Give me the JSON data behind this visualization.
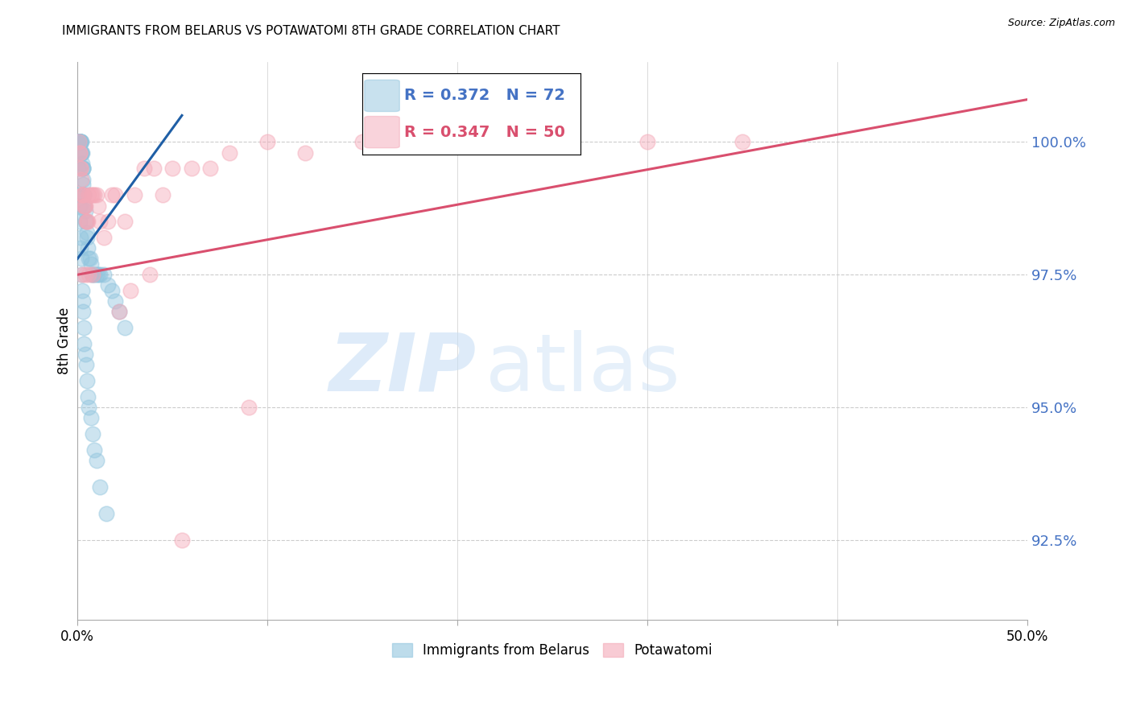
{
  "title": "IMMIGRANTS FROM BELARUS VS POTAWATOMI 8TH GRADE CORRELATION CHART",
  "source": "Source: ZipAtlas.com",
  "ylabel": "8th Grade",
  "legend_label_blue": "Immigrants from Belarus",
  "legend_label_pink": "Potawatomi",
  "legend_blue_text": "R = 0.372   N = 72",
  "legend_pink_text": "R = 0.347   N = 50",
  "blue_color": "#92c5de",
  "pink_color": "#f4a9b8",
  "blue_face": "#92c5de",
  "pink_face": "#f4a9b8",
  "trend_blue": "#1f5fa6",
  "trend_pink": "#d94f6e",
  "yaxis_color": "#4472c4",
  "xlim": [
    0.0,
    50.0
  ],
  "ylim": [
    91.0,
    101.5
  ],
  "yticks": [
    92.5,
    95.0,
    97.5,
    100.0
  ],
  "blue_scatter_x": [
    0.05,
    0.08,
    0.08,
    0.1,
    0.1,
    0.12,
    0.12,
    0.15,
    0.15,
    0.15,
    0.18,
    0.18,
    0.2,
    0.2,
    0.22,
    0.22,
    0.25,
    0.25,
    0.28,
    0.28,
    0.3,
    0.3,
    0.3,
    0.32,
    0.35,
    0.35,
    0.38,
    0.4,
    0.42,
    0.45,
    0.48,
    0.5,
    0.55,
    0.6,
    0.65,
    0.7,
    0.75,
    0.8,
    0.9,
    1.0,
    1.1,
    1.2,
    1.4,
    1.6,
    1.8,
    2.0,
    2.2,
    2.5,
    0.05,
    0.08,
    0.1,
    0.12,
    0.15,
    0.18,
    0.2,
    0.22,
    0.25,
    0.28,
    0.3,
    0.32,
    0.35,
    0.4,
    0.45,
    0.5,
    0.55,
    0.6,
    0.7,
    0.8,
    0.9,
    1.0,
    1.2,
    1.5
  ],
  "blue_scatter_y": [
    100.0,
    100.0,
    100.0,
    100.0,
    100.0,
    100.0,
    100.0,
    100.0,
    100.0,
    100.0,
    100.0,
    100.0,
    100.0,
    99.8,
    99.8,
    99.8,
    99.8,
    99.6,
    99.5,
    99.5,
    99.5,
    99.3,
    99.2,
    99.0,
    99.0,
    98.8,
    98.8,
    98.7,
    98.5,
    98.5,
    98.3,
    98.2,
    98.0,
    97.8,
    97.8,
    97.7,
    97.5,
    97.5,
    97.5,
    97.5,
    97.5,
    97.5,
    97.5,
    97.3,
    97.2,
    97.0,
    96.8,
    96.5,
    99.5,
    99.0,
    98.8,
    98.5,
    98.2,
    98.0,
    97.8,
    97.5,
    97.2,
    97.0,
    96.8,
    96.5,
    96.2,
    96.0,
    95.8,
    95.5,
    95.2,
    95.0,
    94.8,
    94.5,
    94.2,
    94.0,
    93.5,
    93.0
  ],
  "pink_scatter_x": [
    0.08,
    0.1,
    0.12,
    0.15,
    0.18,
    0.2,
    0.25,
    0.28,
    0.3,
    0.35,
    0.38,
    0.4,
    0.45,
    0.5,
    0.55,
    0.6,
    0.7,
    0.8,
    0.9,
    1.0,
    1.1,
    1.2,
    1.4,
    1.6,
    1.8,
    2.0,
    2.5,
    3.0,
    3.5,
    4.0,
    4.5,
    5.0,
    6.0,
    7.0,
    8.0,
    10.0,
    12.0,
    15.0,
    20.0,
    25.0,
    30.0,
    35.0,
    0.25,
    0.4,
    0.6,
    0.8,
    2.2,
    2.8,
    3.8,
    9.0
  ],
  "pink_scatter_y": [
    100.0,
    99.8,
    99.8,
    99.5,
    99.5,
    99.3,
    99.0,
    99.0,
    99.0,
    98.8,
    98.8,
    98.8,
    98.5,
    98.5,
    98.5,
    99.0,
    99.0,
    99.0,
    99.0,
    99.0,
    98.8,
    98.5,
    98.2,
    98.5,
    99.0,
    99.0,
    98.5,
    99.0,
    99.5,
    99.5,
    99.0,
    99.5,
    99.5,
    99.5,
    99.8,
    100.0,
    99.8,
    100.0,
    100.0,
    100.0,
    100.0,
    100.0,
    97.5,
    97.5,
    97.5,
    97.5,
    96.8,
    97.2,
    97.5,
    95.0
  ],
  "blue_trend_x": [
    0.0,
    5.5
  ],
  "blue_trend_y": [
    97.8,
    100.5
  ],
  "pink_trend_x": [
    0.0,
    50.0
  ],
  "pink_trend_y": [
    97.5,
    100.8
  ],
  "pink_outlier_x": 5.5,
  "pink_outlier_y": 92.5,
  "background": "#ffffff"
}
